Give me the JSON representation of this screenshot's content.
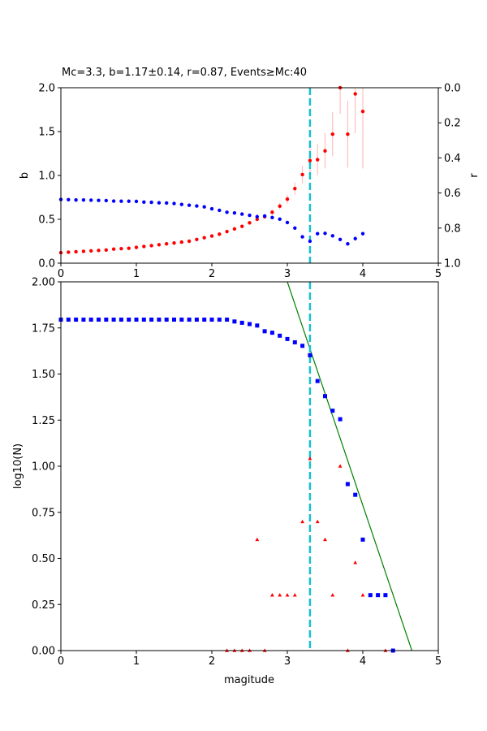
{
  "chart_data": [
    {
      "type": "scatter",
      "title": "Mc=3.3, b=1.17±0.14, r=0.87, Events≥Mc:40",
      "xlabel": "",
      "ylabel": "b",
      "y2label": "r",
      "xlim": [
        0,
        5
      ],
      "ylim": [
        0,
        2.0
      ],
      "y2lim": [
        1.0,
        0.0
      ],
      "y2_inverted": true,
      "xticks": [
        "0",
        "1",
        "2",
        "3",
        "4",
        "5"
      ],
      "yticks": [
        "0.0",
        "0.5",
        "1.0",
        "1.5",
        "2.0"
      ],
      "y2ticks": [
        "0.0",
        "0.2",
        "0.4",
        "0.6",
        "0.8",
        "1.0"
      ],
      "grid": false,
      "mc_line": {
        "x": 3.3,
        "color": "#17becf"
      },
      "series": [
        {
          "axis": "left",
          "color": "#ff0000",
          "x": [
            0.0,
            0.1,
            0.2,
            0.3,
            0.4,
            0.5,
            0.6,
            0.7,
            0.8,
            0.9,
            1.0,
            1.1,
            1.2,
            1.3,
            1.4,
            1.5,
            1.6,
            1.7,
            1.8,
            1.9,
            2.0,
            2.1,
            2.2,
            2.3,
            2.4,
            2.5,
            2.6,
            2.7,
            2.8,
            2.9,
            3.0,
            3.1,
            3.2,
            3.3,
            3.4,
            3.5,
            3.6,
            3.7,
            3.8,
            3.9,
            4.0
          ],
          "y": [
            0.12,
            0.125,
            0.13,
            0.135,
            0.14,
            0.145,
            0.15,
            0.16,
            0.165,
            0.17,
            0.18,
            0.19,
            0.2,
            0.21,
            0.22,
            0.23,
            0.24,
            0.25,
            0.27,
            0.29,
            0.31,
            0.33,
            0.36,
            0.39,
            0.42,
            0.46,
            0.5,
            0.53,
            0.58,
            0.65,
            0.73,
            0.85,
            1.01,
            1.17,
            1.18,
            1.28,
            1.47,
            2.0,
            1.47,
            1.93,
            1.73
          ],
          "yerr": [
            0.005,
            0.005,
            0.005,
            0.005,
            0.005,
            0.005,
            0.005,
            0.006,
            0.006,
            0.006,
            0.007,
            0.007,
            0.007,
            0.008,
            0.008,
            0.008,
            0.009,
            0.009,
            0.01,
            0.01,
            0.011,
            0.012,
            0.013,
            0.015,
            0.017,
            0.02,
            0.022,
            0.025,
            0.03,
            0.04,
            0.05,
            0.07,
            0.1,
            0.14,
            0.18,
            0.2,
            0.25,
            0.3,
            0.38,
            0.45,
            0.65
          ]
        },
        {
          "axis": "right",
          "color": "#0000ff",
          "x": [
            0.0,
            0.1,
            0.2,
            0.3,
            0.4,
            0.5,
            0.6,
            0.7,
            0.8,
            0.9,
            1.0,
            1.1,
            1.2,
            1.3,
            1.4,
            1.5,
            1.6,
            1.7,
            1.8,
            1.9,
            2.0,
            2.1,
            2.2,
            2.3,
            2.4,
            2.5,
            2.6,
            2.7,
            2.8,
            2.9,
            3.0,
            3.1,
            3.2,
            3.3,
            3.4,
            3.5,
            3.6,
            3.7,
            3.8,
            3.9,
            4.0
          ],
          "y": [
            0.637,
            0.638,
            0.64,
            0.64,
            0.641,
            0.642,
            0.643,
            0.646,
            0.647,
            0.647,
            0.648,
            0.652,
            0.653,
            0.656,
            0.657,
            0.66,
            0.665,
            0.67,
            0.674,
            0.679,
            0.69,
            0.699,
            0.71,
            0.714,
            0.72,
            0.727,
            0.735,
            0.731,
            0.74,
            0.749,
            0.768,
            0.8,
            0.85,
            0.875,
            0.832,
            0.83,
            0.844,
            0.865,
            0.89,
            0.86,
            0.832
          ]
        }
      ]
    },
    {
      "type": "scatter",
      "title": "",
      "xlabel": "magitude",
      "ylabel": "log10(N)",
      "xlim": [
        0,
        5
      ],
      "ylim": [
        0,
        2.0
      ],
      "xticks": [
        "0",
        "1",
        "2",
        "3",
        "4",
        "5"
      ],
      "yticks": [
        "0.00",
        "0.25",
        "0.50",
        "0.75",
        "1.00",
        "1.25",
        "1.50",
        "1.75",
        "2.00"
      ],
      "grid": false,
      "mc_line": {
        "x": 3.3,
        "color": "#17becf"
      },
      "fit_line": {
        "color": "#008000",
        "points": [
          [
            3.0,
            2.0
          ],
          [
            4.65,
            0.0
          ]
        ]
      },
      "series": [
        {
          "marker": "square",
          "color": "#0000ff",
          "x": [
            0.0,
            0.1,
            0.2,
            0.3,
            0.4,
            0.5,
            0.6,
            0.7,
            0.8,
            0.9,
            1.0,
            1.1,
            1.2,
            1.3,
            1.4,
            1.5,
            1.6,
            1.7,
            1.8,
            1.9,
            2.0,
            2.1,
            2.2,
            2.3,
            2.4,
            2.5,
            2.6,
            2.7,
            2.8,
            2.9,
            3.0,
            3.1,
            3.2,
            3.3,
            3.4,
            3.5,
            3.6,
            3.7,
            3.8,
            3.9,
            4.0,
            4.1,
            4.2,
            4.3,
            4.4
          ],
          "y": [
            1.795,
            1.795,
            1.795,
            1.795,
            1.795,
            1.795,
            1.795,
            1.795,
            1.795,
            1.795,
            1.795,
            1.795,
            1.795,
            1.795,
            1.795,
            1.795,
            1.795,
            1.795,
            1.795,
            1.795,
            1.795,
            1.795,
            1.795,
            1.785,
            1.778,
            1.771,
            1.763,
            1.732,
            1.724,
            1.708,
            1.69,
            1.672,
            1.653,
            1.602,
            1.462,
            1.38,
            1.301,
            1.255,
            0.903,
            0.845,
            0.602,
            0.301,
            0.301,
            0.301,
            0.0
          ]
        },
        {
          "marker": "triangle",
          "color": "#ff0000",
          "x": [
            2.2,
            2.3,
            2.4,
            2.5,
            2.6,
            2.7,
            2.8,
            2.9,
            3.0,
            3.1,
            3.2,
            3.3,
            3.4,
            3.5,
            3.6,
            3.7,
            3.8,
            3.9,
            4.0,
            4.3
          ],
          "y": [
            0.0,
            0.0,
            0.0,
            0.0,
            0.602,
            0.0,
            0.301,
            0.301,
            0.301,
            0.301,
            0.699,
            1.041,
            0.699,
            0.602,
            0.301,
            1.0,
            0.0,
            0.477,
            0.301,
            0.0
          ]
        }
      ]
    }
  ]
}
